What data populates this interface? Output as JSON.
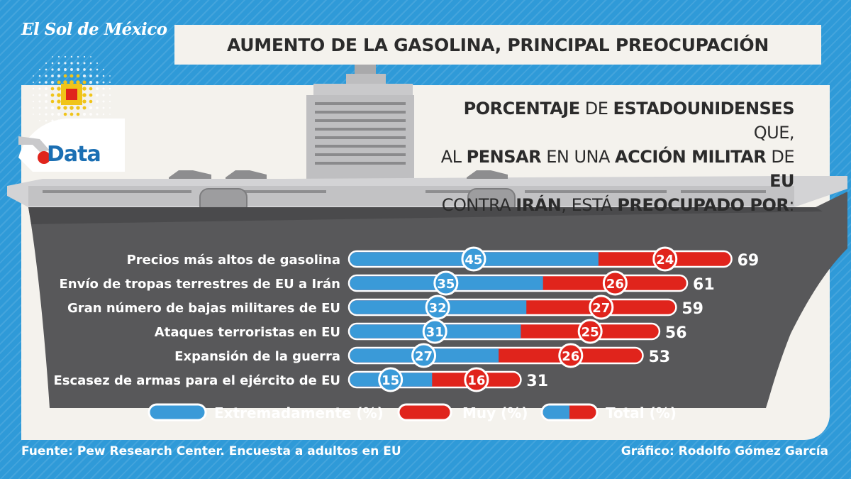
{
  "brand": {
    "name": "El Sol de México",
    "logo_text": "Data"
  },
  "headline": "AUMENTO DE LA GASOLINA, PRINCIPAL PREOCUPACIÓN",
  "subtitle": {
    "parts": [
      {
        "t": "PORCENTAJE",
        "b": true
      },
      {
        "t": " DE ",
        "b": false
      },
      {
        "t": "ESTADOUNIDENSES",
        "b": true
      },
      {
        "t": " QUE,",
        "b": false
      },
      {
        "t": "|",
        "b": false
      },
      {
        "t": "AL ",
        "b": false
      },
      {
        "t": "PENSAR",
        "b": true
      },
      {
        "t": " EN UNA ",
        "b": false
      },
      {
        "t": "ACCIÓN MILITAR",
        "b": true
      },
      {
        "t": " DE ",
        "b": false
      },
      {
        "t": "EU",
        "b": true
      },
      {
        "t": "|",
        "b": false
      },
      {
        "t": "CONTRA ",
        "b": false
      },
      {
        "t": "IRÁN",
        "b": true
      },
      {
        "t": ", ESTÁ ",
        "b": false
      },
      {
        "t": "PREOCUPADO POR",
        "b": true
      },
      {
        "t": ":",
        "b": false
      }
    ]
  },
  "colors": {
    "extreme": "#3a9ad8",
    "very": "#e0241c",
    "hull": "#58585a",
    "panel": "#f4f2ed",
    "bg": "#2f9ad8"
  },
  "chart_data": {
    "type": "bar",
    "stacked": true,
    "orientation": "horizontal",
    "categories": [
      "Precios más altos de gasolina",
      "Envío de tropas terrestres de EU a Irán",
      "Gran número de bajas militares de EU",
      "Ataques terroristas en EU",
      "Expansión de la guerra",
      "Escasez de armas para el ejército de EU"
    ],
    "series": [
      {
        "name": "Extremadamente (%)",
        "values": [
          45,
          35,
          32,
          31,
          27,
          15
        ]
      },
      {
        "name": "Muy (%)",
        "values": [
          24,
          26,
          27,
          25,
          26,
          16
        ]
      }
    ],
    "totals": [
      69,
      61,
      59,
      56,
      53,
      31
    ],
    "total_label": "Total (%)",
    "legend_position": "bottom",
    "grid": false
  },
  "footer": {
    "source": "Fuente: Pew Research Center. Encuesta a adultos en EU",
    "credit": "Gráfico: Rodolfo Gómez García"
  }
}
